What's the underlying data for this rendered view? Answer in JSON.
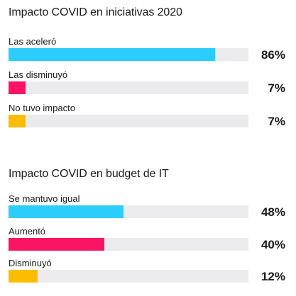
{
  "chart_data": [
    {
      "type": "bar",
      "orientation": "horizontal",
      "title": "Impacto COVID en iniciativas 2020",
      "categories": [
        "Las aceleró",
        "Las disminuyó",
        "No tuvo impacto"
      ],
      "values": [
        86,
        7,
        7
      ],
      "value_labels": [
        "86%",
        "7%",
        "7%"
      ],
      "colors": [
        "#2ccdfa",
        "#fa1464",
        "#fcbd00"
      ],
      "track_color": "#ebebee",
      "xlim": [
        0,
        100
      ]
    },
    {
      "type": "bar",
      "orientation": "horizontal",
      "title": "Impacto COVID en budget de IT",
      "categories": [
        "Se mantuvo igual",
        "Aumentó",
        "Disminuyó"
      ],
      "values": [
        48,
        40,
        12
      ],
      "value_labels": [
        "48%",
        "40%",
        "12%"
      ],
      "colors": [
        "#2ccdfa",
        "#fa1464",
        "#fcbd00"
      ],
      "track_color": "#ebebee",
      "xlim": [
        0,
        100
      ]
    }
  ]
}
